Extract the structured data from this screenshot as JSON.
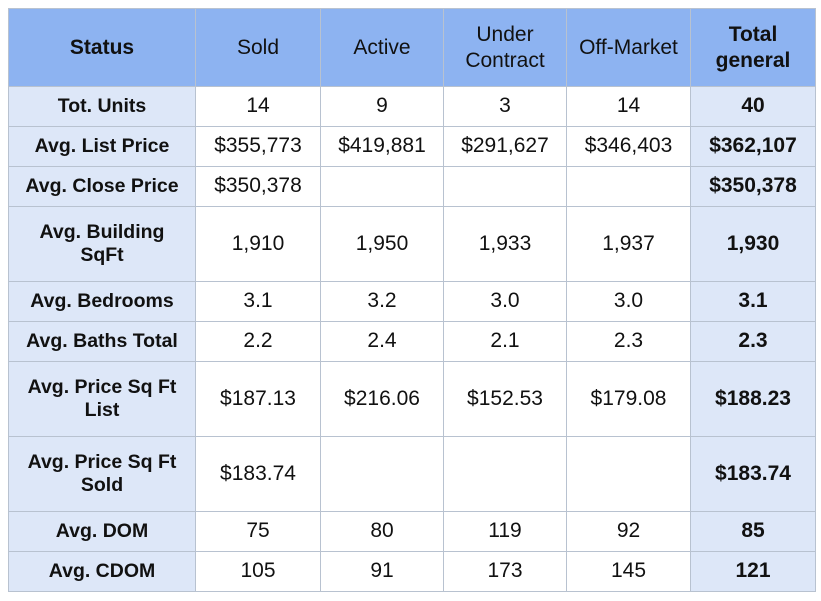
{
  "table": {
    "header": [
      "Status",
      "Sold",
      "Active",
      "Under\nContract",
      "Off-Market",
      "Total\ngeneral"
    ],
    "rows": [
      [
        "Tot. Units",
        "14",
        "9",
        "3",
        "14",
        "40"
      ],
      [
        "Avg. List Price",
        "$355,773",
        "$419,881",
        "$291,627",
        "$346,403",
        "$362,107"
      ],
      [
        "Avg. Close Price",
        "$350,378",
        null,
        null,
        null,
        "$350,378"
      ],
      [
        "Avg. Building\nSqFt",
        "1,910",
        "1,950",
        "1,933",
        "1,937",
        "1,930"
      ],
      [
        "Avg. Bedrooms",
        "3.1",
        "3.2",
        "3.0",
        "3.0",
        "3.1"
      ],
      [
        "Avg. Baths Total",
        "2.2",
        "2.4",
        "2.1",
        "2.3",
        "2.3"
      ],
      [
        "Avg. Price Sq Ft\nList",
        "$187.13",
        "$216.06",
        "$152.53",
        "$179.08",
        "$188.23"
      ],
      [
        "Avg. Price Sq Ft\nSold",
        "$183.74",
        null,
        null,
        null,
        "$183.74"
      ],
      [
        "Avg. DOM",
        "75",
        "80",
        "119",
        "92",
        "85"
      ],
      [
        "Avg. CDOM",
        "105",
        "91",
        "173",
        "145",
        "121"
      ]
    ]
  }
}
